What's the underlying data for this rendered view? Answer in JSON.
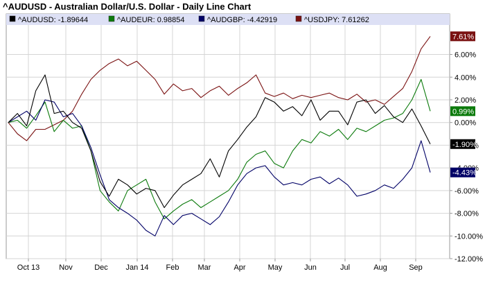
{
  "title": "^AUDUSD - Australian Dollar/U.S. Dollar - Daily Line Chart",
  "chart_data": {
    "type": "line",
    "title": "^AUDUSD - Australian Dollar/U.S. Dollar - Daily Line Chart",
    "xlabel": "",
    "ylabel": "",
    "x_tick_labels": [
      "Oct 13",
      "Nov",
      "Dec",
      "Jan 14",
      "Feb",
      "Mar",
      "Apr",
      "May",
      "Jun",
      "Jul",
      "Aug",
      "Sep"
    ],
    "y_tick_values": [
      6,
      4,
      2,
      0,
      -2,
      -4,
      -6,
      -8,
      -10,
      -12
    ],
    "y_tick_labels": [
      "6.00%",
      "4.00%",
      "2.00%",
      "0.00%",
      "-2.00%",
      "-4.00%",
      "-6.00%",
      "-8.00%",
      "-10.00%",
      "-12.00%"
    ],
    "ylim": [
      -12,
      8.6
    ],
    "grid": true,
    "legend_position": "top",
    "series": [
      {
        "name": "^AUDUSD",
        "legend_label": "^AUDUSD: -1.89644",
        "end_label": "-1.90%",
        "color": "#000000",
        "values": [
          0.0,
          0.8,
          -0.3,
          2.8,
          4.2,
          0.8,
          1.0,
          0.0,
          -0.5,
          -2.5,
          -5.2,
          -6.5,
          -5.0,
          -5.5,
          -6.3,
          -5.8,
          -6.0,
          -7.5,
          -6.4,
          -5.5,
          -5.0,
          -4.5,
          -3.2,
          -4.8,
          -2.5,
          -1.5,
          -0.4,
          0.5,
          2.2,
          1.8,
          1.0,
          1.4,
          0.6,
          2.0,
          0.2,
          1.0,
          1.0,
          -0.2,
          1.8,
          2.0,
          0.8,
          1.5,
          0.5,
          0.0,
          1.2,
          -0.3,
          -1.9
        ]
      },
      {
        "name": "^AUDEUR",
        "legend_label": "^AUDEUR: 0.98854",
        "end_label": "0.99%",
        "color": "#0b7a0b",
        "values": [
          0.0,
          0.2,
          -0.5,
          0.6,
          1.8,
          -0.8,
          0.2,
          -0.5,
          -0.3,
          -2.5,
          -6.0,
          -7.0,
          -7.8,
          -6.0,
          -5.5,
          -5.0,
          -7.0,
          -8.5,
          -7.8,
          -7.2,
          -6.8,
          -7.5,
          -7.0,
          -6.5,
          -6.0,
          -5.0,
          -3.5,
          -2.8,
          -2.5,
          -3.6,
          -4.0,
          -2.5,
          -1.5,
          -1.8,
          -0.8,
          -1.2,
          -0.6,
          -1.5,
          -0.5,
          -0.8,
          -0.3,
          0.2,
          0.4,
          0.8,
          2.0,
          3.8,
          1.0
        ]
      },
      {
        "name": "^AUDGBP",
        "legend_label": "^AUDGBP: -4.42919",
        "end_label": "-4.43%",
        "color": "#000066",
        "values": [
          0.0,
          0.5,
          1.0,
          0.2,
          2.0,
          1.8,
          0.5,
          0.8,
          -0.3,
          -2.2,
          -4.6,
          -6.8,
          -7.5,
          -8.0,
          -8.6,
          -9.5,
          -10.0,
          -8.2,
          -9.0,
          -8.2,
          -8.0,
          -8.5,
          -9.0,
          -8.3,
          -7.0,
          -5.5,
          -4.5,
          -4.0,
          -3.8,
          -4.8,
          -5.5,
          -5.3,
          -5.5,
          -5.0,
          -4.8,
          -5.4,
          -4.9,
          -5.5,
          -6.5,
          -6.3,
          -6.0,
          -5.5,
          -5.8,
          -5.0,
          -4.0,
          -1.6,
          -4.4
        ]
      },
      {
        "name": "^USDJPY",
        "legend_label": "^USDJPY: 7.61262",
        "end_label": "7.61%",
        "color": "#7a1111",
        "values": [
          0.0,
          -1.0,
          -1.6,
          -0.6,
          -0.6,
          -0.2,
          0.2,
          1.0,
          2.5,
          3.8,
          4.6,
          5.2,
          5.6,
          5.0,
          5.4,
          4.6,
          3.8,
          2.5,
          3.4,
          2.8,
          3.0,
          2.2,
          2.8,
          3.2,
          2.4,
          3.0,
          3.5,
          4.2,
          2.6,
          2.3,
          2.6,
          2.1,
          2.4,
          2.2,
          2.4,
          2.6,
          2.2,
          2.0,
          2.5,
          1.8,
          2.0,
          1.6,
          2.3,
          3.0,
          4.5,
          6.5,
          7.6
        ]
      }
    ]
  },
  "colors": {
    "legend_bg": "#dde0f5",
    "grid": "#d4d4d4",
    "plot_border": "#999999"
  }
}
